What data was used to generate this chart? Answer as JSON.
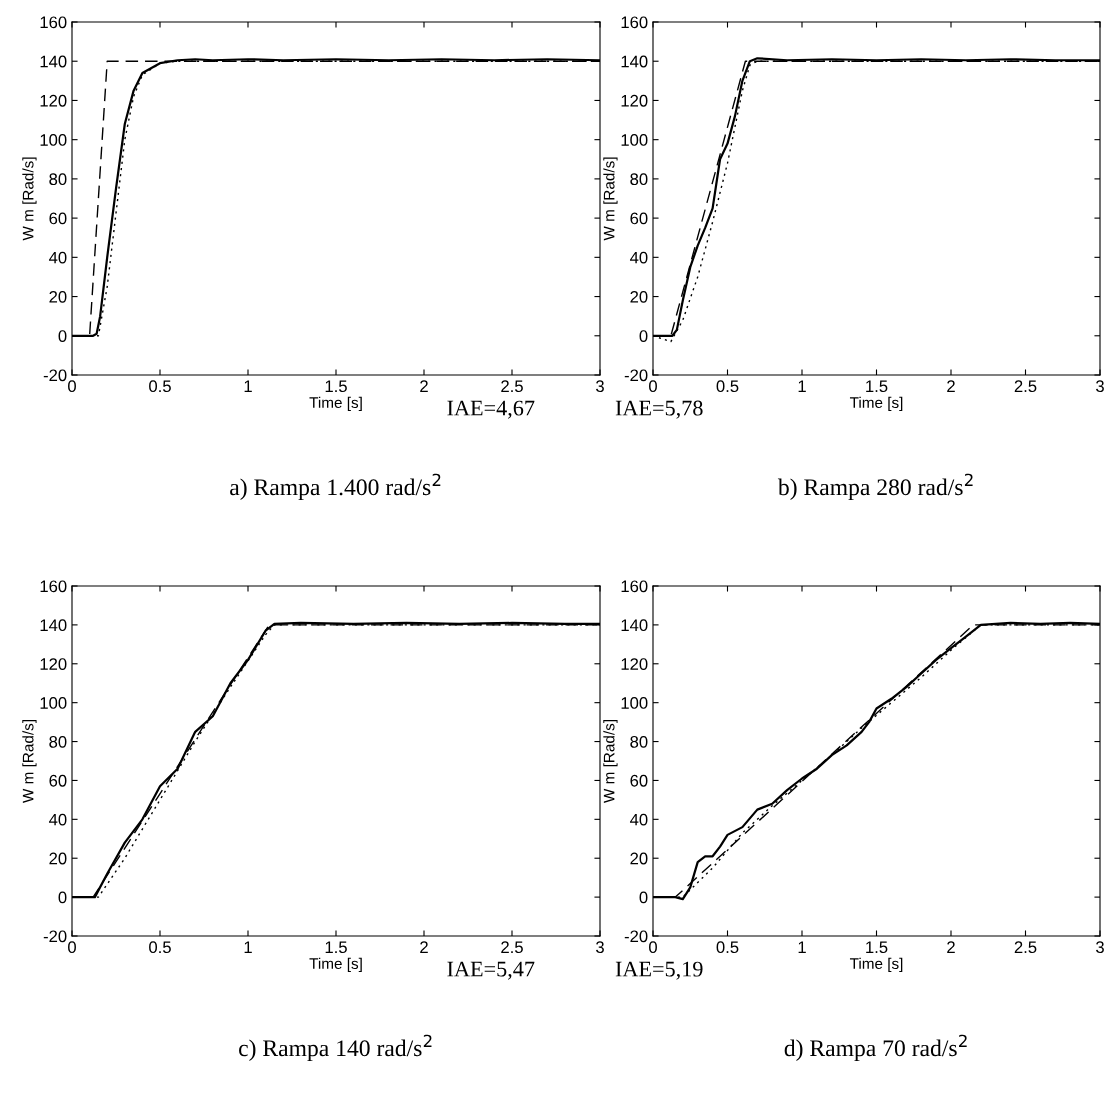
{
  "chart_data": [
    {
      "type": "line",
      "xlabel": "Time [s]",
      "ylabel": "W m [Rad/s]",
      "xlim": [
        0,
        3
      ],
      "ylim": [
        -20,
        160
      ],
      "xticks": [
        0,
        0.5,
        1,
        1.5,
        2,
        2.5,
        3
      ],
      "yticks": [
        -20,
        0,
        20,
        40,
        60,
        80,
        100,
        120,
        140,
        160
      ],
      "grid": false,
      "legend": false,
      "annotations": [
        "IAE=4,67",
        "a) Rampa 1.400 rad/s$^{2}$"
      ],
      "series": [
        {
          "color": "#000000",
          "line_style": "dashed",
          "x": [
            0,
            0.1,
            0.2,
            3
          ],
          "values": [
            0,
            0,
            140,
            140
          ]
        },
        {
          "color": "#000000",
          "line_style": "solid",
          "x": [
            0,
            0.12,
            0.14,
            0.16,
            0.2,
            0.25,
            0.3,
            0.35,
            0.4,
            0.5,
            0.6,
            0.7,
            0.8,
            1.0,
            1.2,
            1.5,
            1.8,
            2.1,
            2.4,
            2.7,
            3
          ],
          "values": [
            0,
            0,
            1,
            10,
            40,
            75,
            108,
            125,
            134,
            139,
            140.5,
            141,
            140.5,
            141,
            140.5,
            141,
            140.5,
            141,
            140.5,
            141,
            140.5
          ]
        },
        {
          "color": "#000000",
          "line_style": "dotted",
          "x": [
            0,
            0.15,
            0.2,
            0.3,
            0.35,
            0.4,
            0.5,
            0.6,
            3
          ],
          "values": [
            0,
            0,
            25,
            100,
            122,
            133,
            139,
            140,
            140
          ]
        }
      ]
    },
    {
      "type": "line",
      "xlabel": "Time [s]",
      "ylabel": "W m [Rad/s]",
      "xlim": [
        0,
        3
      ],
      "ylim": [
        -20,
        160
      ],
      "xticks": [
        0,
        0.5,
        1,
        1.5,
        2,
        2.5,
        3
      ],
      "yticks": [
        -20,
        0,
        20,
        40,
        60,
        80,
        100,
        120,
        140,
        160
      ],
      "grid": false,
      "legend": false,
      "annotations": [
        "IAE=5,78",
        "b) Rampa 280 rad/s$^{2}$"
      ],
      "series": [
        {
          "color": "#000000",
          "line_style": "dashed",
          "x": [
            0,
            0.12,
            0.62,
            3
          ],
          "values": [
            0,
            0,
            140,
            140
          ]
        },
        {
          "color": "#000000",
          "line_style": "solid",
          "x": [
            0,
            0.13,
            0.16,
            0.2,
            0.25,
            0.3,
            0.35,
            0.4,
            0.45,
            0.5,
            0.55,
            0.6,
            0.65,
            0.7,
            0.9,
            1.2,
            1.5,
            1.8,
            2.1,
            2.4,
            2.7,
            3
          ],
          "values": [
            0,
            0,
            3,
            18,
            35,
            46,
            55,
            65,
            90,
            98,
            112,
            130,
            140,
            141.5,
            140.5,
            141,
            140.5,
            141,
            140.5,
            141,
            140.5,
            140.5
          ]
        },
        {
          "color": "#000000",
          "line_style": "dotted",
          "x": [
            0,
            0.12,
            0.2,
            0.3,
            0.4,
            0.5,
            0.6,
            0.65,
            0.7,
            3
          ],
          "values": [
            0,
            -3,
            8,
            30,
            58,
            88,
            125,
            138,
            140,
            140
          ]
        }
      ]
    },
    {
      "type": "line",
      "xlabel": "Time [s]",
      "ylabel": "W m [Rad/s]",
      "xlim": [
        0,
        3
      ],
      "ylim": [
        -20,
        160
      ],
      "xticks": [
        0,
        0.5,
        1,
        1.5,
        2,
        2.5,
        3
      ],
      "yticks": [
        -20,
        0,
        20,
        40,
        60,
        80,
        100,
        120,
        140,
        160
      ],
      "grid": false,
      "legend": false,
      "annotations": [
        "IAE=5,47",
        "c) Rampa 140 rad/s$^{2}$"
      ],
      "series": [
        {
          "color": "#000000",
          "line_style": "dashed",
          "x": [
            0,
            0.12,
            1.12,
            3
          ],
          "values": [
            0,
            0,
            140,
            140
          ]
        },
        {
          "color": "#000000",
          "line_style": "solid",
          "x": [
            0,
            0.13,
            0.2,
            0.3,
            0.4,
            0.5,
            0.6,
            0.7,
            0.8,
            0.9,
            1.0,
            1.1,
            1.15,
            1.3,
            1.6,
            1.9,
            2.2,
            2.5,
            2.8,
            3
          ],
          "values": [
            0,
            0,
            12,
            28,
            40,
            57,
            66,
            85,
            93,
            110,
            122,
            137,
            140.5,
            141,
            140.5,
            141,
            140.5,
            141,
            140.5,
            140.5
          ]
        },
        {
          "color": "#000000",
          "line_style": "dotted",
          "x": [
            0,
            0.15,
            0.3,
            0.5,
            0.7,
            0.9,
            1.1,
            1.15,
            3
          ],
          "values": [
            0,
            0,
            20,
            50,
            80,
            108,
            135,
            140,
            140
          ]
        }
      ]
    },
    {
      "type": "line",
      "xlabel": "Time [s]",
      "ylabel": "W m [Rad/s]",
      "xlim": [
        0,
        3
      ],
      "ylim": [
        -20,
        160
      ],
      "xticks": [
        0,
        0.5,
        1,
        1.5,
        2,
        2.5,
        3
      ],
      "yticks": [
        -20,
        0,
        20,
        40,
        60,
        80,
        100,
        120,
        140,
        160
      ],
      "grid": false,
      "legend": false,
      "annotations": [
        "IAE=5,19",
        "d) Rampa 70 rad/s$^{2}$"
      ],
      "series": [
        {
          "color": "#000000",
          "line_style": "dashed",
          "x": [
            0,
            0.15,
            2.15,
            3
          ],
          "values": [
            0,
            0,
            140,
            140
          ]
        },
        {
          "color": "#000000",
          "line_style": "solid",
          "x": [
            0,
            0.15,
            0.2,
            0.25,
            0.3,
            0.35,
            0.4,
            0.45,
            0.5,
            0.6,
            0.7,
            0.8,
            0.9,
            1.0,
            1.1,
            1.2,
            1.3,
            1.4,
            1.45,
            1.5,
            1.6,
            1.7,
            1.8,
            1.9,
            2.0,
            2.1,
            2.2,
            2.4,
            2.6,
            2.8,
            3
          ],
          "values": [
            0,
            0,
            -1,
            5,
            18,
            21,
            21,
            26,
            32,
            36,
            45,
            48,
            55,
            61,
            66,
            73,
            78,
            85,
            90,
            97,
            102,
            108,
            115,
            122,
            128,
            134,
            140,
            141,
            140.5,
            141,
            140.5
          ]
        },
        {
          "color": "#000000",
          "line_style": "dotted",
          "x": [
            0,
            0.2,
            0.4,
            0.6,
            0.8,
            1.0,
            1.2,
            1.4,
            1.6,
            1.8,
            2.0,
            2.2,
            3
          ],
          "values": [
            0,
            0,
            15,
            33,
            47,
            60,
            73,
            87,
            100,
            113,
            127,
            140,
            140
          ]
        }
      ]
    }
  ]
}
